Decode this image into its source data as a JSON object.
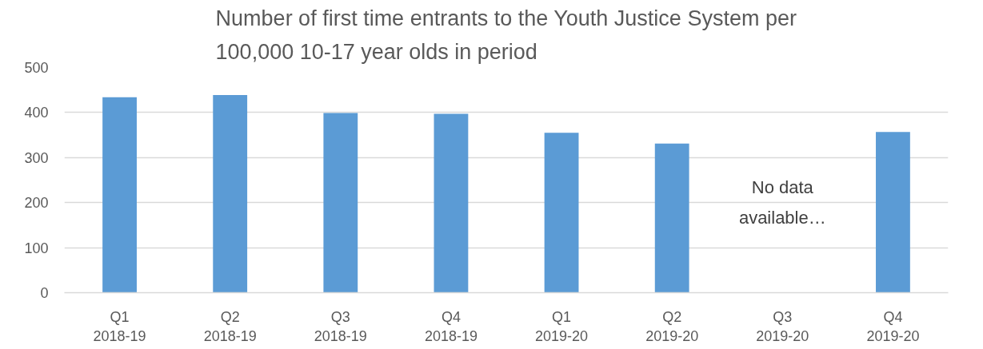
{
  "chart_data": {
    "type": "bar",
    "title": "Number of first time entrants to the Youth Justice System per\n100,000 10-17 year olds in period",
    "categories": [
      "Q1\n2018-19",
      "Q2\n2018-19",
      "Q3\n2018-19",
      "Q4\n2018-19",
      "Q1\n2019-20",
      "Q2\n2019-20",
      "Q3\n2019-20",
      "Q4\n2019-20"
    ],
    "values": [
      434,
      439,
      399,
      397,
      355,
      331,
      null,
      357
    ],
    "color": "#5b9bd5",
    "ylim": [
      0,
      500
    ],
    "yticks": [
      0,
      100,
      200,
      300,
      400,
      500
    ],
    "grid": "y",
    "annotations": [
      "No data\navailable…"
    ]
  }
}
